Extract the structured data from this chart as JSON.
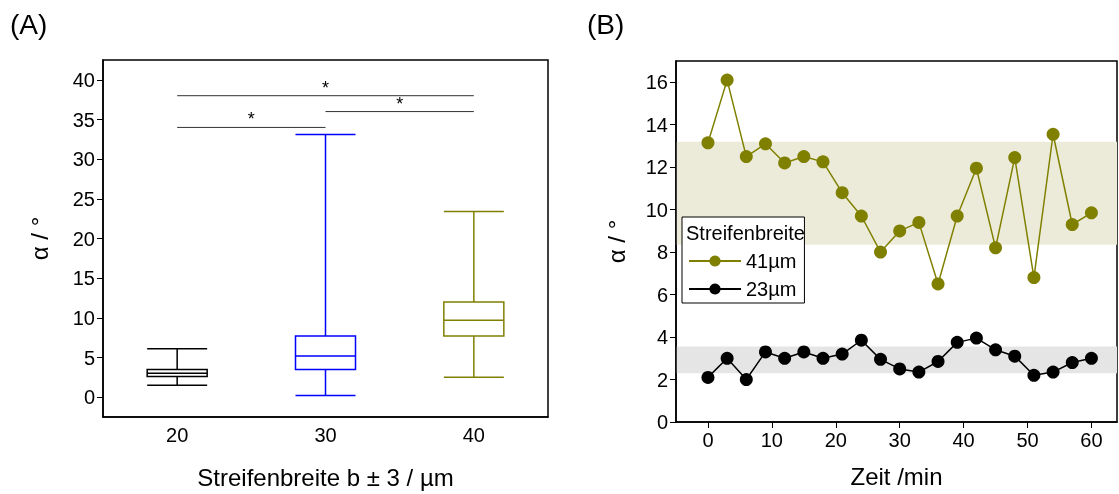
{
  "chart_data": [
    {
      "type": "box",
      "title": "(A)",
      "xlabel": "Streifenbreite b ± 3 / µm",
      "ylabel": "α / °",
      "categories": [
        "20",
        "30",
        "40"
      ],
      "colors": [
        "#000000",
        "#0000ff",
        "#808000"
      ],
      "boxes": [
        {
          "low": 1.5,
          "q1": 2.6,
          "median": 3.0,
          "q3": 3.5,
          "high": 6.1
        },
        {
          "low": 0.2,
          "q1": 3.5,
          "median": 5.2,
          "q3": 7.7,
          "high": 33.1
        },
        {
          "low": 2.5,
          "q1": 7.7,
          "median": 9.7,
          "q3": 12.0,
          "high": 23.4
        }
      ],
      "ylim": [
        -2.5,
        42.5
      ],
      "yticks": [
        0,
        5,
        10,
        15,
        20,
        25,
        30,
        35,
        40
      ],
      "grid": false,
      "legend": false,
      "annotations": [
        "*",
        "*",
        "*"
      ]
    },
    {
      "type": "line",
      "title": "(B)",
      "xlabel": "Zeit /min",
      "ylabel": "α / °",
      "legend_title": "Streifenbreite",
      "legend": "left",
      "marker": "circle",
      "line_style": "solid",
      "grid": false,
      "xlim": [
        -5,
        64
      ],
      "xticks": [
        0,
        10,
        20,
        30,
        40,
        50,
        60
      ],
      "ylim": [
        0,
        17
      ],
      "yticks": [
        0,
        2,
        4,
        6,
        8,
        10,
        12,
        14,
        16
      ],
      "x": [
        0,
        3,
        6,
        9,
        12,
        15,
        18,
        21,
        24,
        27,
        30,
        33,
        36,
        39,
        42,
        45,
        48,
        51,
        54,
        57,
        60
      ],
      "series": [
        {
          "name": "41µm",
          "color": "#808000",
          "values": [
            13.15,
            16.1,
            12.5,
            13.1,
            12.2,
            12.5,
            12.25,
            10.8,
            9.7,
            8.0,
            9.0,
            9.4,
            6.5,
            9.7,
            11.95,
            8.2,
            12.45,
            6.8,
            13.55,
            9.3,
            9.85
          ]
        },
        {
          "name": "23µm",
          "color": "#000000",
          "values": [
            2.1,
            3.0,
            2.0,
            3.3,
            3.0,
            3.3,
            3.0,
            3.2,
            3.85,
            2.95,
            2.5,
            2.35,
            2.85,
            3.75,
            3.95,
            3.4,
            3.1,
            2.2,
            2.35,
            2.8,
            3.0
          ]
        }
      ],
      "bands": [
        {
          "axis": "y",
          "from": 8.35,
          "to": 13.2,
          "color": "#ecebd9"
        },
        {
          "axis": "y",
          "from": 2.3,
          "to": 3.55,
          "color": "#e5e5e5"
        }
      ]
    }
  ]
}
